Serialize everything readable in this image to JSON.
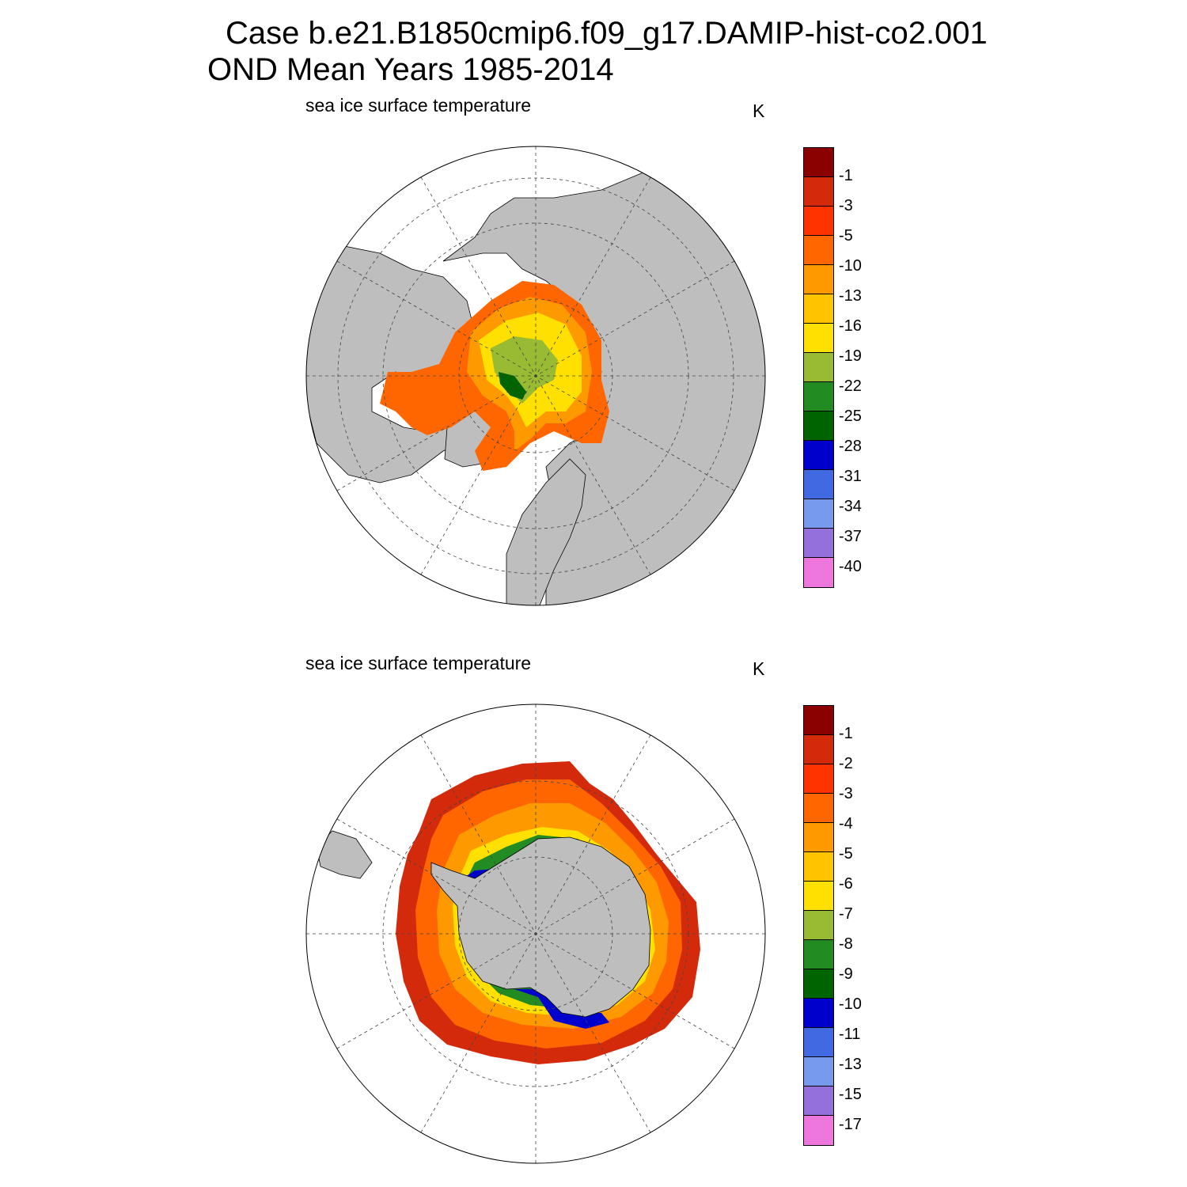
{
  "title_line1": "Case b.e21.B1850cmip6.f09_g17.DAMIP-hist-co2.001",
  "title_line2": "OND Mean   Years 1985-2014",
  "panels": [
    {
      "hemisphere": "north",
      "label": "sea ice surface temperature",
      "units": "K",
      "colorbar_labels": [
        "-1",
        "-3",
        "-5",
        "-10",
        "-13",
        "-16",
        "-19",
        "-22",
        "-25",
        "-28",
        "-31",
        "-34",
        "-37",
        "-40"
      ],
      "colors": [
        "#8b0000",
        "#d42a0c",
        "#ff3300",
        "#ff6600",
        "#ff9900",
        "#ffc300",
        "#ffe000",
        "#99bb33",
        "#228b22",
        "#006400",
        "#0000cd",
        "#4169e1",
        "#7799ee",
        "#9370db",
        "#ee77dd"
      ]
    },
    {
      "hemisphere": "south",
      "label": "sea ice surface temperature",
      "units": "K",
      "colorbar_labels": [
        "-1",
        "-2",
        "-3",
        "-4",
        "-5",
        "-6",
        "-7",
        "-8",
        "-9",
        "-10",
        "-11",
        "-13",
        "-15",
        "-17"
      ],
      "colors": [
        "#8b0000",
        "#d42a0c",
        "#ff3300",
        "#ff6600",
        "#ff9900",
        "#ffc300",
        "#ffe000",
        "#99bb33",
        "#228b22",
        "#006400",
        "#0000cd",
        "#4169e1",
        "#7799ee",
        "#9370db",
        "#ee77dd"
      ]
    }
  ],
  "land_color": "#bebebe"
}
